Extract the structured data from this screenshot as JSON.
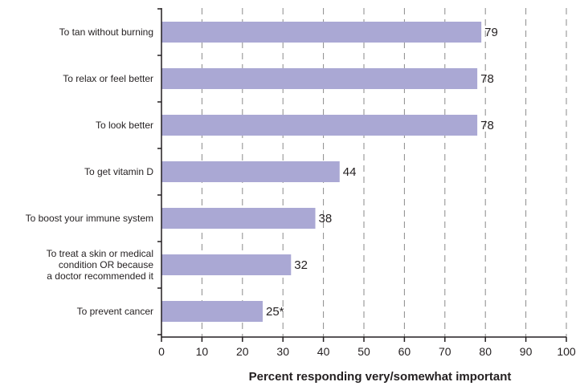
{
  "chart_data": {
    "type": "bar",
    "orientation": "horizontal",
    "categories": [
      "To tan without burning",
      "To relax or feel better",
      "To look better",
      "To get vitamin D",
      "To boost your immune system",
      "To treat a skin or medical condition OR because a doctor recommended it",
      "To prevent cancer"
    ],
    "category_lines": [
      [
        "To tan without burning"
      ],
      [
        "To relax or feel better"
      ],
      [
        "To look better"
      ],
      [
        "To get vitamin D"
      ],
      [
        "To boost your immune system"
      ],
      [
        "To treat a skin or medical",
        "condition OR because",
        "a doctor recommended it"
      ],
      [
        "To prevent cancer"
      ]
    ],
    "values": [
      79,
      78,
      78,
      44,
      38,
      32,
      25
    ],
    "value_labels": [
      "79",
      "78",
      "78",
      "44",
      "38",
      "32",
      "25*"
    ],
    "xlabel": "Percent responding very/somewhat important",
    "xlim": [
      0,
      100
    ],
    "xticks": [
      0,
      10,
      20,
      30,
      40,
      50,
      60,
      70,
      80,
      90,
      100
    ],
    "grid": "vertical dashed",
    "colors": {
      "bar": "#aaa8d4",
      "grid": "#8a8a8a",
      "axis": "#231f20"
    }
  }
}
